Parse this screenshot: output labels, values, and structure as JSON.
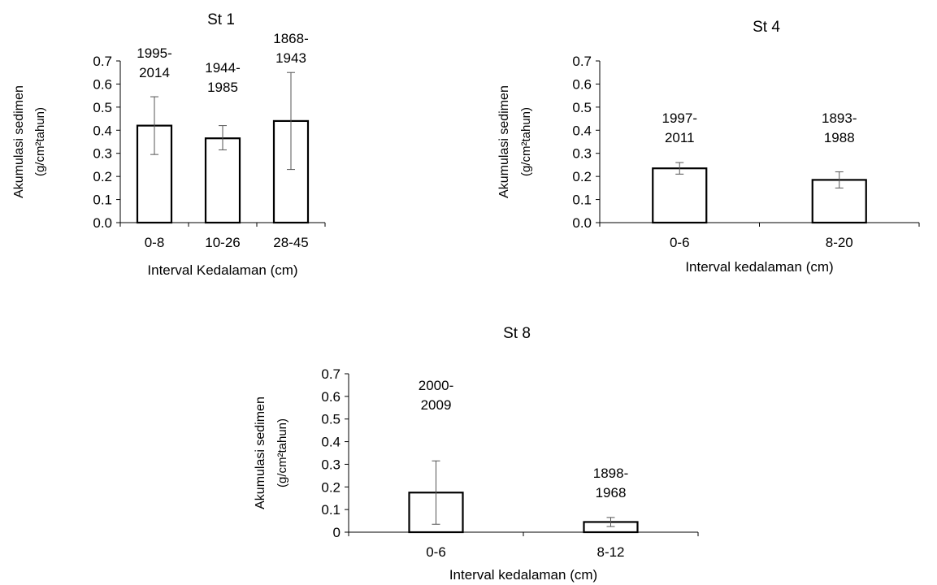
{
  "chart_data": [
    {
      "type": "bar",
      "title": "St 1",
      "xlabel": "Interval Kedalaman (cm)",
      "ylabel_line1": "Akumulasi sedimen",
      "ylabel_line2": "(g/cm²tahun)",
      "categories": [
        "0-8",
        "10-26",
        "28-45"
      ],
      "values": [
        0.42,
        0.365,
        0.44
      ],
      "error_low": [
        0.295,
        0.315,
        0.23
      ],
      "error_high": [
        0.545,
        0.42,
        0.65
      ],
      "annotations": [
        [
          "1995-",
          "2014"
        ],
        [
          "1944-",
          "1985"
        ],
        [
          "1868-",
          "1943"
        ]
      ],
      "ylim": [
        0,
        0.7
      ],
      "yticks": [
        "0.0",
        "0.1",
        "0.2",
        "0.3",
        "0.4",
        "0.5",
        "0.6",
        "0.7"
      ],
      "grid": false
    },
    {
      "type": "bar",
      "title": "St 4",
      "xlabel": "Interval kedalaman (cm)",
      "ylabel_line1": "Akumulasi sedimen",
      "ylabel_line2": "(g/cm²tahun)",
      "categories": [
        "0-6",
        "8-20"
      ],
      "values": [
        0.235,
        0.185
      ],
      "error_low": [
        0.21,
        0.15
      ],
      "error_high": [
        0.26,
        0.22
      ],
      "annotations": [
        [
          "1997-",
          "2011"
        ],
        [
          "1893-",
          "1988"
        ]
      ],
      "ylim": [
        0,
        0.7
      ],
      "yticks": [
        "0.0",
        "0.1",
        "0.2",
        "0.3",
        "0.4",
        "0.5",
        "0.6",
        "0.7"
      ],
      "grid": false
    },
    {
      "type": "bar",
      "title": "St 8",
      "xlabel": "Interval kedalaman (cm)",
      "ylabel_line1": "Akumulasi sedimen",
      "ylabel_line2": "(g/cm²tahun)",
      "categories": [
        "0-6",
        "8-12"
      ],
      "values": [
        0.175,
        0.045
      ],
      "error_low": [
        0.035,
        0.025
      ],
      "error_high": [
        0.315,
        0.065
      ],
      "annotations": [
        [
          "2000-",
          "2009"
        ],
        [
          "1898-",
          "1968"
        ]
      ],
      "ylim": [
        0,
        0.7
      ],
      "yticks": [
        "0",
        "0.1",
        "0.2",
        "0.3",
        "0.4",
        "0.5",
        "0.6",
        "0.7"
      ],
      "grid": false
    }
  ]
}
